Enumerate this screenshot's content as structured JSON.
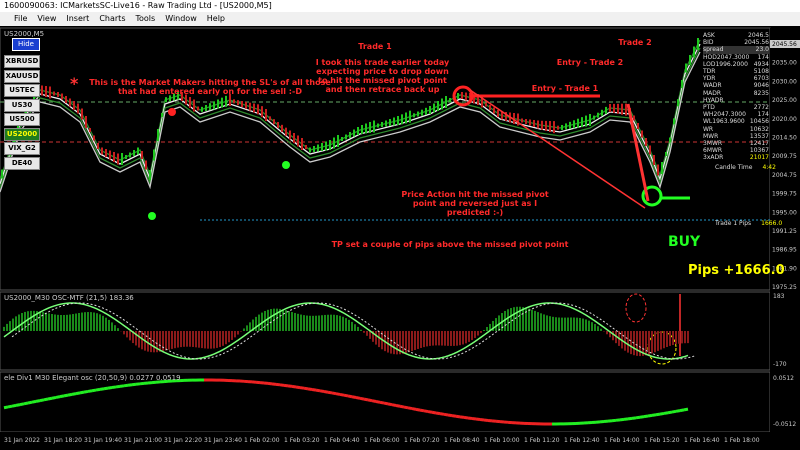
{
  "window": {
    "title": "1600090063: ICMarketsSC-Live16 - Raw Trading Ltd - [US2000,M5]",
    "menu": [
      "File",
      "View",
      "Insert",
      "Charts",
      "Tools",
      "Window",
      "Help"
    ]
  },
  "chart": {
    "symbol_label": "US2000,M5",
    "hide_button": "Hide",
    "symbols": [
      "XBRUSD",
      "XAUUSD",
      "USTEC",
      "US30",
      "US500",
      "US2000",
      "VIX_G2",
      "DE40"
    ],
    "price_labels": [
      "2045.56",
      "2035.00",
      "2030.00",
      "2025.00",
      "2020.00",
      "2014.50",
      "2009.75",
      "2004.75",
      "1999.75",
      "1995.00",
      "1991.25",
      "1986.95",
      "1981.90",
      "1975.25"
    ],
    "time_labels": [
      "31 Jan 2022",
      "31 Jan 18:20",
      "31 Jan 19:40",
      "31 Jan 21:00",
      "31 Jan 22:20",
      "31 Jan 23:40",
      "1 Feb 02:00",
      "1 Feb 03:20",
      "1 Feb 04:40",
      "1 Feb 06:00",
      "1 Feb 07:20",
      "1 Feb 08:40",
      "1 Feb 10:00",
      "1 Feb 11:20",
      "1 Feb 12:40",
      "1 Feb 14:00",
      "1 Feb 15:20",
      "1 Feb 16:40",
      "1 Feb 18:00"
    ]
  },
  "panel": {
    "rows": [
      [
        "ASK",
        "2046.5"
      ],
      [
        "BID",
        "2045.56"
      ],
      [
        "spread",
        "23.0"
      ],
      [
        "HOD2047.3000",
        "174"
      ],
      [
        "LOD1996.2000",
        "4934"
      ],
      [
        "TDR",
        "5108"
      ],
      [
        "YDR",
        "6703"
      ],
      [
        "WADR",
        "9046"
      ],
      [
        "MADR",
        "8235"
      ],
      [
        "HYADR",
        ""
      ],
      [
        "PTD",
        "2772"
      ],
      [
        "WH2047.3000",
        "174"
      ],
      [
        "WL1963.9600",
        "10456"
      ],
      [
        "WR",
        "10632"
      ],
      [
        "MWR",
        "13537"
      ],
      [
        "3MWR",
        "12417"
      ],
      [
        "6MWR",
        "10367"
      ],
      [
        "3xADR",
        "21017"
      ]
    ],
    "candle_time_label": "Candle Time",
    "candle_time": "4:42",
    "trade_pips_label": "Trade 1 Pips",
    "trade_pips": "1666.0"
  },
  "annotations": {
    "market_makers": "This is the Market Makers hitting the SL's of all those that had entered early on for the sell :-D",
    "trade1_title": "Trade 1",
    "trade1_text": "I took this trade earlier today expecting price to drop down to hit the missed pivot point and then retrace back up",
    "trade2_title": "Trade 2",
    "entry2": "Entry - Trade 2",
    "entry1": "Entry - Trade 1",
    "price_action": "Price Action hit the missed pivot point and reversed just as I predicted :-)",
    "tp": "TP set a couple of pips above the missed pivot point",
    "buy": "BUY",
    "pips": "Pips +1666.0"
  },
  "indicator1": {
    "title": "US2000_M30 OSC-MTF (21,5) 183.36",
    "axis": [
      "183",
      "-170"
    ]
  },
  "indicator2": {
    "title": "ele Div1 M30 Elegant osc (20,50,9) 0.0277 0.0519",
    "axis": [
      "0.0512",
      "-0.0512"
    ]
  }
}
